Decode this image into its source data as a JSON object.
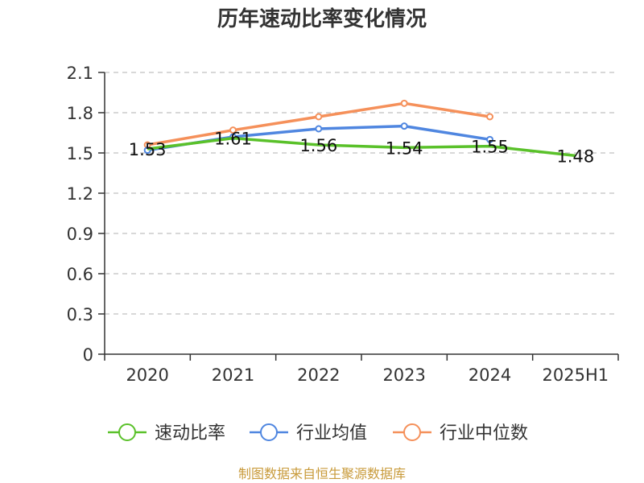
{
  "title": "历年速动比率变化情况",
  "source": "制图数据来自恒生聚源数据库",
  "chart_data": {
    "type": "line",
    "title": "历年速动比率变化情况",
    "categories": [
      "2020",
      "2021",
      "2022",
      "2023",
      "2024",
      "2025H1"
    ],
    "ylim": [
      0,
      2.1
    ],
    "yticks": [
      "0",
      "0.3",
      "0.6",
      "0.9",
      "1.2",
      "1.5",
      "1.8",
      "2.1"
    ],
    "grid": true,
    "legend_position": "bottom",
    "series": [
      {
        "name": "速动比率",
        "color": "#5ac12a",
        "values": [
          1.53,
          1.61,
          1.56,
          1.54,
          1.55,
          1.48
        ],
        "labels": [
          "1.53",
          "1.61",
          "1.56",
          "1.54",
          "1.55",
          "1.48"
        ],
        "show_labels": true,
        "show_points": false
      },
      {
        "name": "行业均值",
        "color": "#4f86e0",
        "values": [
          1.52,
          1.62,
          1.68,
          1.7,
          1.6,
          null
        ],
        "show_labels": false,
        "show_points": true
      },
      {
        "name": "行业中位数",
        "color": "#f5905a",
        "values": [
          1.56,
          1.67,
          1.77,
          1.87,
          1.77,
          null
        ],
        "show_labels": false,
        "show_points": true
      }
    ]
  }
}
